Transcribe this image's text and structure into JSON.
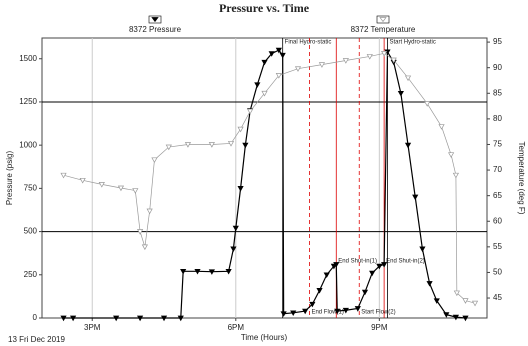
{
  "chart_data": {
    "type": "line",
    "title": "Pressure vs. Time",
    "x_label": "Time (Hours)",
    "y_label": "Pressure (psig)",
    "y2_label": "Temperature (deg F)",
    "date_label": "13 Fri Dec 2019",
    "xlim": [
      13.95,
      23.25
    ],
    "xticks": [
      {
        "value": 15,
        "label": "3PM"
      },
      {
        "value": 18,
        "label": "6PM"
      },
      {
        "value": 21,
        "label": "9PM"
      }
    ],
    "ylim": [
      0,
      1620
    ],
    "yticks": [
      0,
      250,
      500,
      {
        "value": 750,
        "label": "750"
      },
      {
        "value": 1000,
        "label": "1000"
      },
      {
        "value": 1250,
        "label": "1250"
      },
      {
        "value": 1500,
        "label": "1500"
      }
    ],
    "y2lim": [
      41.1,
      95.8
    ],
    "y2ticks": [
      45,
      50,
      55,
      60,
      65,
      70,
      75,
      80,
      85,
      90,
      95
    ],
    "reference_lines": [
      500,
      1250
    ],
    "grid": true,
    "series": [
      {
        "name": "8372 Pressure",
        "color": "#000000",
        "marker": "filled",
        "x": [
          14.4,
          14.6,
          15.5,
          16.0,
          16.5,
          16.85,
          16.9,
          17.2,
          17.5,
          17.85,
          17.95,
          18.0,
          18.1,
          18.2,
          18.3,
          18.45,
          18.6,
          18.75,
          18.9,
          18.98,
          19.0,
          19.2,
          19.45,
          19.6,
          19.75,
          19.9,
          20.05,
          20.1,
          20.12,
          20.3,
          20.55,
          20.7,
          20.85,
          21.0,
          21.1,
          21.17,
          21.3,
          21.45,
          21.6,
          21.75,
          21.9,
          22.05,
          22.2,
          22.4,
          22.6,
          22.8
        ],
        "values": [
          0,
          0,
          0,
          0,
          0,
          0,
          270,
          270,
          268,
          270,
          400,
          520,
          750,
          1000,
          1200,
          1350,
          1480,
          1530,
          1550,
          1520,
          25,
          30,
          40,
          80,
          160,
          250,
          300,
          310,
          40,
          45,
          55,
          150,
          260,
          300,
          310,
          1540,
          1480,
          1300,
          1000,
          700,
          400,
          200,
          100,
          20,
          5,
          0
        ]
      },
      {
        "name": "8372 Temperature",
        "color": "#999999",
        "marker": "open",
        "axis": "y2",
        "x": [
          14.4,
          14.8,
          15.2,
          15.6,
          15.9,
          16.0,
          16.1,
          16.2,
          16.3,
          16.6,
          17.0,
          17.5,
          17.9,
          18.1,
          18.3,
          18.6,
          18.9,
          19.3,
          19.8,
          20.3,
          20.8,
          21.1,
          21.3,
          21.6,
          22.0,
          22.3,
          22.5,
          22.6,
          22.62,
          22.8,
          23.0
        ],
        "values": [
          69,
          68,
          67.2,
          66.5,
          66,
          58,
          55,
          62,
          72,
          74.5,
          75,
          75,
          75.2,
          78,
          81.5,
          85,
          88.5,
          89.8,
          90.6,
          91.4,
          92.2,
          92.8,
          91.5,
          88,
          83,
          78.5,
          73,
          69,
          46,
          44.5,
          44
        ]
      }
    ],
    "events": [
      {
        "x": 18.98,
        "label": "Final Hydro-static",
        "color": "#000000",
        "style": "solid",
        "position": "top"
      },
      {
        "x": 19.54,
        "label": "End Flow(1)",
        "color": "#dd0000",
        "style": "dashed",
        "position": "bottom"
      },
      {
        "x": 20.1,
        "label": "End Shut-in(1)",
        "color": "#dd0000",
        "style": "solid",
        "position": "middle"
      },
      {
        "x": 20.58,
        "label": "Start Flow(2)",
        "color": "#dd0000",
        "style": "dashed",
        "position": "bottom"
      },
      {
        "x": 21.1,
        "label": "End Shut-in(2)",
        "color": "#dd0000",
        "style": "solid",
        "position": "middle"
      },
      {
        "x": 21.17,
        "label": "Start Hydro-static",
        "color": "#000000",
        "style": "solid",
        "position": "top"
      }
    ]
  }
}
